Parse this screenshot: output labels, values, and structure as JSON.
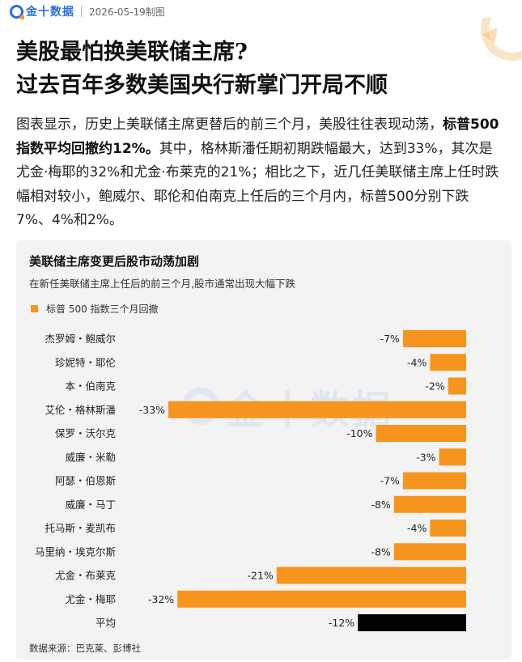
{
  "header": {
    "logo_text": "金十数据",
    "date": "2026-05-19制图"
  },
  "headline": {
    "line1": "美股最怕换美联储主席?",
    "line2": "过去百年多数美国央行新掌门开局不顺"
  },
  "description": {
    "part1": "图表显示，历史上美联储主席更替后的前三个月，美股往往表现动荡，",
    "bold": "标普500指数平均回撤约12%。",
    "part2": "其中，格林斯潘任期初期跌幅最大，达到33%，其次是尤金·梅耶的32%和尤金·布莱克的21%；相比之下，近几任美联储主席上任时跌幅相对较小，鲍威尔、耶伦和伯南克上任后的三个月内，标普500分别下跌7%、4%和2%。"
  },
  "watermark": "金十数据",
  "chart_data": {
    "type": "bar",
    "orientation": "horizontal",
    "title": "美联储主席变更后股市动荡加剧",
    "subtitle": "在新任美联储主席上任后的前三个月,股市通常出现大幅下跌",
    "legend": "标普 500 指数三个月回撤",
    "source": "数据来源：巴克莱、彭博社",
    "categories": [
      "杰罗姆・鲍威尔",
      "珍妮特・耶伦",
      "本・伯南克",
      "艾伦・格林斯潘",
      "保罗・沃尔克",
      "威廉・米勒",
      "阿瑟・伯恩斯",
      "威廉・马丁",
      "托马斯・麦凯布",
      "马里纳・埃克尔斯",
      "尤金・布莱克",
      "尤金・梅耶",
      "平均"
    ],
    "values": [
      -7,
      -4,
      -2,
      -33,
      -10,
      -3,
      -7,
      -8,
      -4,
      -8,
      -21,
      -32,
      -12
    ],
    "labels": [
      "-7%",
      "-4%",
      "-2%",
      "-33%",
      "-10%",
      "-3%",
      "-7%",
      "-8%",
      "-4%",
      "-8%",
      "-21%",
      "-32%",
      "-12%"
    ],
    "colors": {
      "bar": "#f7941d",
      "average": "#000000"
    },
    "xlim": [
      -34,
      0
    ]
  }
}
